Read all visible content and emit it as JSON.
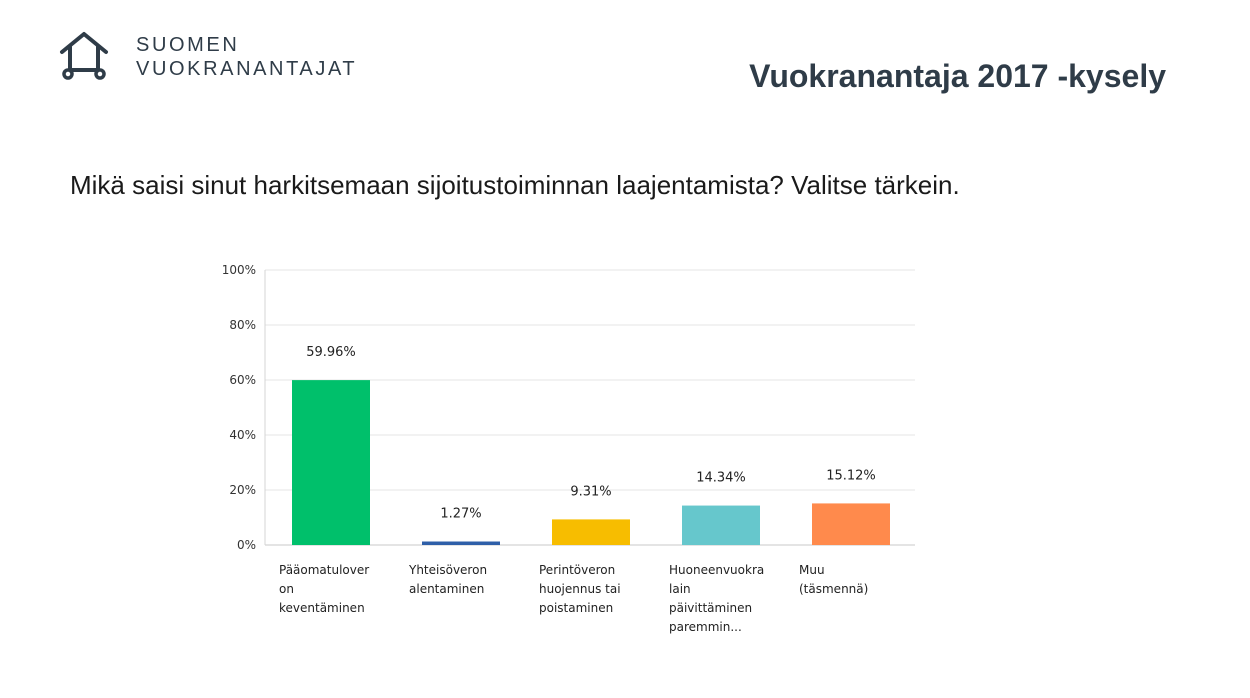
{
  "brand": {
    "line1": "SUOMEN",
    "line2": "VUOKRANANTAJAT",
    "logo_icon": "house-icon",
    "color": "#2f3c48"
  },
  "header": {
    "title": "Vuokranantaja 2017 -kysely"
  },
  "question": {
    "text": "Mikä saisi sinut harkitsemaan sijoitustoiminnan laajentamista? Valitse tärkein."
  },
  "chart_data": {
    "type": "bar",
    "y_ticks": [
      "0%",
      "20%",
      "40%",
      "60%",
      "80%",
      "100%"
    ],
    "ylim": [
      0,
      100
    ],
    "grid": true,
    "bars": [
      {
        "label_lines": [
          "Pääomatulover",
          "on",
          "keventäminen"
        ],
        "value": 59.96,
        "value_label": "59.96%",
        "color": "#00c06b"
      },
      {
        "label_lines": [
          "Yhteisöveron",
          "alentaminen"
        ],
        "value": 1.27,
        "value_label": "1.27%",
        "color": "#2e5fa8"
      },
      {
        "label_lines": [
          "Perintöveron",
          "huojennus tai",
          "poistaminen"
        ],
        "value": 9.31,
        "value_label": "9.31%",
        "color": "#f7bd00"
      },
      {
        "label_lines": [
          "Huoneenvuokra",
          "lain",
          "päivittäminen",
          "paremmin..."
        ],
        "value": 14.34,
        "value_label": "14.34%",
        "color": "#66c7cc"
      },
      {
        "label_lines": [
          "Muu",
          "(täsmennä)"
        ],
        "value": 15.12,
        "value_label": "15.12%",
        "color": "#ff8a4c"
      }
    ]
  }
}
